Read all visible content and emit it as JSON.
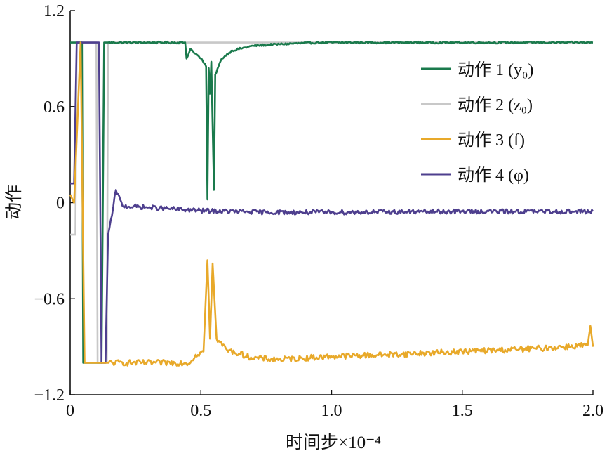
{
  "chart_data": {
    "type": "line",
    "xlabel": "时间步×10⁻⁴",
    "ylabel": "动作",
    "xlim": [
      0,
      2.0
    ],
    "ylim": [
      -1.2,
      1.2
    ],
    "x_ticks": [
      "0",
      "0.5",
      "1.0",
      "1.5",
      "2.0"
    ],
    "y_ticks": [
      "1.2",
      "0.6",
      "0",
      "−0.6",
      "−1.2"
    ],
    "grid": false,
    "legend_position": "top-right",
    "series": [
      {
        "name": "动作 1 (y₀)",
        "color": "#1a7a4c",
        "points": [
          [
            0,
            1.0
          ],
          [
            0.03,
            1.0
          ],
          [
            0.045,
            1.0
          ],
          [
            0.05,
            -1.0
          ],
          [
            0.12,
            -1.0
          ],
          [
            0.13,
            1.0
          ],
          [
            0.44,
            1.0
          ],
          [
            0.445,
            0.9
          ],
          [
            0.46,
            0.96
          ],
          [
            0.48,
            0.93
          ],
          [
            0.5,
            0.9
          ],
          [
            0.52,
            0.85
          ],
          [
            0.525,
            0.02
          ],
          [
            0.53,
            0.84
          ],
          [
            0.535,
            0.68
          ],
          [
            0.54,
            0.88
          ],
          [
            0.55,
            0.08
          ],
          [
            0.555,
            0.8
          ],
          [
            0.58,
            0.9
          ],
          [
            0.62,
            0.95
          ],
          [
            0.7,
            0.98
          ],
          [
            0.8,
            0.99
          ],
          [
            0.95,
            1.0
          ],
          [
            1.2,
            1.0
          ],
          [
            2.0,
            1.0
          ]
        ]
      },
      {
        "name": "动作 2 (z₀)",
        "color": "#c8c8c8",
        "points": [
          [
            0,
            -0.2
          ],
          [
            0.02,
            -0.2
          ],
          [
            0.025,
            1.0
          ],
          [
            0.1,
            1.0
          ],
          [
            0.105,
            -1.0
          ],
          [
            0.14,
            -1.0
          ],
          [
            0.145,
            1.0
          ],
          [
            2.0,
            1.0
          ]
        ]
      },
      {
        "name": "动作 3 (f)",
        "color": "#e8a92a",
        "points": [
          [
            0,
            0.05
          ],
          [
            0.015,
            0.0
          ],
          [
            0.04,
            1.0
          ],
          [
            0.055,
            -1.0
          ],
          [
            0.46,
            -1.0
          ],
          [
            0.48,
            -0.95
          ],
          [
            0.51,
            -0.93
          ],
          [
            0.525,
            -0.36
          ],
          [
            0.535,
            -0.85
          ],
          [
            0.545,
            -0.38
          ],
          [
            0.56,
            -0.85
          ],
          [
            0.6,
            -0.92
          ],
          [
            0.7,
            -0.97
          ],
          [
            0.8,
            -0.98
          ],
          [
            1.0,
            -0.96
          ],
          [
            1.2,
            -0.95
          ],
          [
            1.5,
            -0.93
          ],
          [
            1.8,
            -0.91
          ],
          [
            1.98,
            -0.89
          ],
          [
            1.99,
            -0.77
          ],
          [
            2.0,
            -0.9
          ]
        ]
      },
      {
        "name": "动作 4 (φ)",
        "color": "#4e3f8e",
        "points": [
          [
            0,
            0.12
          ],
          [
            0.015,
            0.12
          ],
          [
            0.025,
            1.0
          ],
          [
            0.11,
            1.0
          ],
          [
            0.12,
            -1.0
          ],
          [
            0.135,
            -1.0
          ],
          [
            0.145,
            -0.2
          ],
          [
            0.16,
            -0.08
          ],
          [
            0.175,
            0.08
          ],
          [
            0.2,
            -0.02
          ],
          [
            0.3,
            -0.03
          ],
          [
            0.5,
            -0.05
          ],
          [
            0.75,
            -0.06
          ],
          [
            1.0,
            -0.06
          ],
          [
            1.5,
            -0.055
          ],
          [
            2.0,
            -0.055
          ]
        ]
      }
    ]
  }
}
